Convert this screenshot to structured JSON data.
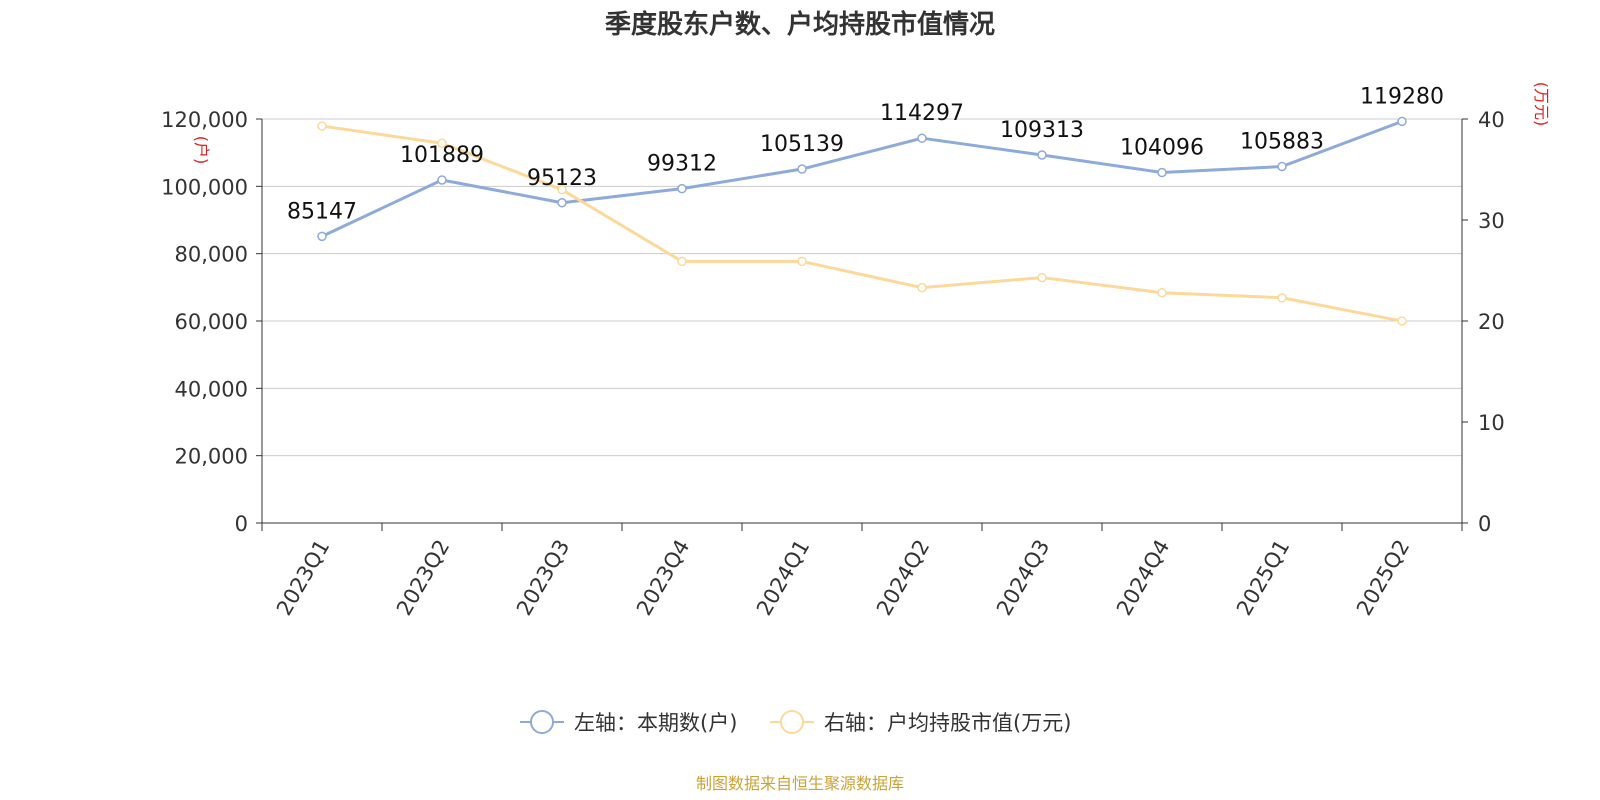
{
  "chart_data": {
    "type": "line",
    "title": "季度股东户数、户均持股市值情况",
    "categories": [
      "2023Q1",
      "2023Q2",
      "2023Q3",
      "2023Q4",
      "2024Q1",
      "2024Q2",
      "2024Q3",
      "2024Q4",
      "2025Q1",
      "2025Q2"
    ],
    "series": [
      {
        "name": "左轴：本期数(户)",
        "axis": "left",
        "color": "#8eaad8",
        "values": [
          85147,
          101889,
          95123,
          99312,
          105139,
          114297,
          109313,
          104096,
          105883,
          119280
        ],
        "show_labels": true
      },
      {
        "name": "右轴：户均持股市值(万元)",
        "axis": "right",
        "color": "#fcd99a",
        "values": [
          39.3,
          37.6,
          33.0,
          25.9,
          25.9,
          23.3,
          24.3,
          22.8,
          22.3,
          20.0
        ],
        "show_labels": false
      }
    ],
    "y_left": {
      "label": "(户)",
      "min": 0,
      "max": 120000,
      "ticks": [
        0,
        20000,
        40000,
        60000,
        80000,
        100000,
        120000
      ],
      "tick_labels": [
        "0",
        "20,000",
        "40,000",
        "60,000",
        "80,000",
        "100,000",
        "120,000"
      ]
    },
    "y_right": {
      "label": "(万元)",
      "min": 0,
      "max": 40,
      "ticks": [
        0,
        10,
        20,
        30,
        40
      ],
      "tick_labels": [
        "0",
        "10",
        "20",
        "30",
        "40"
      ]
    },
    "grid": true,
    "legend_position": "bottom"
  },
  "source": "制图数据来自恒生聚源数据库",
  "colors": {
    "axis_label": "#e02020",
    "grid": "#cccccc",
    "axis": "#333333",
    "text": "#333333"
  }
}
